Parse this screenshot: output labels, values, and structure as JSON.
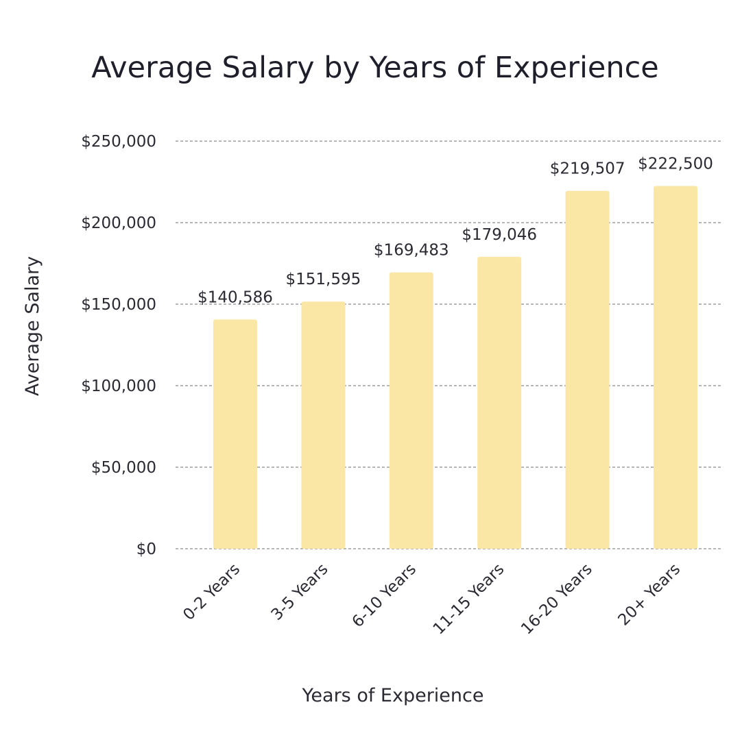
{
  "chart_data": {
    "type": "bar",
    "title": "Average Salary by Years of Experience",
    "xlabel": "Years of Experience",
    "ylabel": "Average Salary",
    "categories": [
      "0-2 Years",
      "3-5 Years",
      "6-10 Years",
      "11-15 Years",
      "16-20 Years",
      "20+ Years"
    ],
    "values": [
      140586,
      151595,
      169483,
      179046,
      219507,
      222500
    ],
    "data_labels": [
      "$140,586",
      "$151,595",
      "$169,483",
      "$179,046",
      "$219,507",
      "$222,500"
    ],
    "yticks": [
      0,
      50000,
      100000,
      150000,
      200000,
      250000
    ],
    "ytick_labels": [
      "$0",
      "$50,000",
      "$100,000",
      "$150,000",
      "$200,000",
      "$250,000"
    ],
    "ylim": [
      0,
      250000
    ],
    "grid": true,
    "bar_color": "#fae6a5"
  }
}
